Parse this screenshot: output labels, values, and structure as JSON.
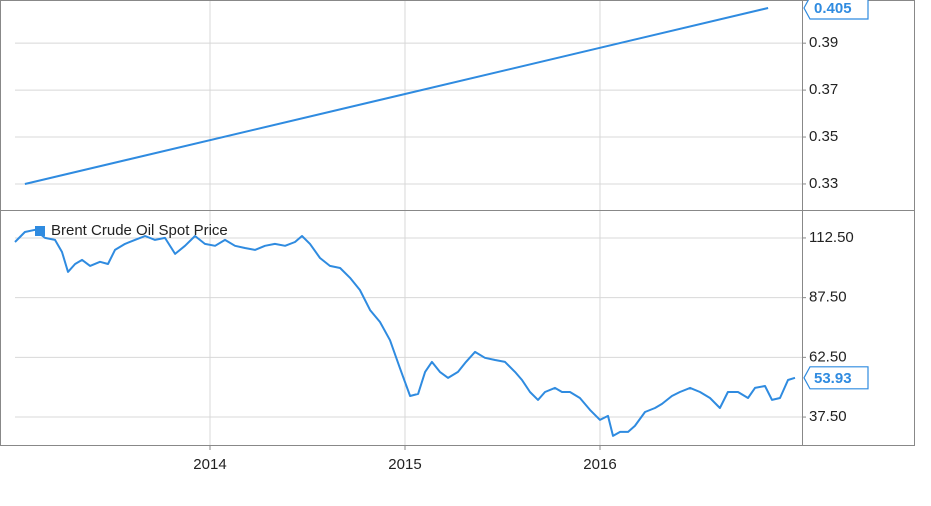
{
  "chart_data": [
    {
      "type": "line",
      "xlim": [
        2013,
        2017.036
      ],
      "xticks": [
        2014,
        2015,
        2016
      ],
      "ylim": [
        0.3189,
        0.4084
      ],
      "yticks": [
        0.33,
        0.35,
        0.37,
        0.39
      ],
      "grid": true,
      "series": [
        {
          "color": "#2f8be0",
          "x": [
            2013.051,
            2016.862
          ],
          "values": [
            0.33,
            0.405
          ]
        }
      ]
    },
    {
      "type": "line",
      "xlim": [
        2013,
        2017.036
      ],
      "xticks": [
        2014,
        2015,
        2016
      ],
      "ylim": [
        25.8,
        124.2
      ],
      "yticks": [
        {
          "value": 37.5,
          "label": "37.50"
        },
        {
          "value": 62.5,
          "label": "62.50"
        },
        {
          "value": 87.5,
          "label": "87.50"
        },
        {
          "value": 112.5,
          "label": "112.50"
        }
      ],
      "grid": true,
      "legend": "top-left",
      "series": [
        {
          "name": "Brent Crude Oil Spot Price",
          "color": "#2f8be0",
          "x": [
            2013.0,
            2013.051,
            2013.103,
            2013.154,
            2013.205,
            2013.241,
            2013.272,
            2013.308,
            2013.344,
            2013.385,
            2013.436,
            2013.477,
            2013.513,
            2013.564,
            2013.615,
            2013.667,
            2013.718,
            2013.769,
            2013.821,
            2013.872,
            2013.923,
            2013.974,
            2014.026,
            2014.077,
            2014.128,
            2014.179,
            2014.231,
            2014.282,
            2014.333,
            2014.385,
            2014.436,
            2014.472,
            2014.513,
            2014.564,
            2014.615,
            2014.667,
            2014.718,
            2014.769,
            2014.821,
            2014.872,
            2014.923,
            2014.974,
            2015.026,
            2015.067,
            2015.103,
            2015.138,
            2015.179,
            2015.221,
            2015.272,
            2015.313,
            2015.359,
            2015.41,
            2015.462,
            2015.513,
            2015.564,
            2015.6,
            2015.641,
            2015.682,
            2015.718,
            2015.769,
            2015.805,
            2015.846,
            2015.897,
            2015.949,
            2016.0,
            2016.041,
            2016.067,
            2016.103,
            2016.144,
            2016.179,
            2016.231,
            2016.282,
            2016.318,
            2016.369,
            2016.41,
            2016.462,
            2016.513,
            2016.564,
            2016.615,
            2016.656,
            2016.708,
            2016.759,
            2016.795,
            2016.846,
            2016.882,
            2016.923,
            2016.964,
            2017.0
          ],
          "values": [
            110.8,
            115,
            115.9,
            112.5,
            111.7,
            106.6,
            98.3,
            101.6,
            103.3,
            100.8,
            102.5,
            101.6,
            107.5,
            110,
            111.7,
            113.3,
            111.7,
            112.5,
            105.8,
            109.2,
            113.3,
            110,
            109.2,
            111.7,
            109.2,
            108.3,
            107.5,
            109.2,
            110,
            109.2,
            110.8,
            113.3,
            110,
            104.1,
            100.8,
            99.9,
            95.8,
            90.7,
            82.3,
            77.3,
            69.7,
            58.0,
            46.3,
            47.2,
            56.4,
            60.6,
            56.4,
            53.9,
            56.4,
            60.6,
            64.8,
            62.3,
            61.4,
            60.6,
            56.4,
            53.0,
            48.0,
            44.7,
            48.0,
            49.7,
            48.0,
            48.0,
            45.5,
            40.5,
            36.3,
            38.0,
            29.6,
            31.3,
            31.3,
            33.8,
            39.6,
            41.3,
            43.0,
            46.3,
            48.0,
            49.7,
            48.0,
            45.5,
            41.3,
            48.0,
            48.0,
            45.5,
            49.7,
            50.5,
            44.7,
            45.5,
            53.0,
            53.93
          ]
        }
      ]
    }
  ]
}
